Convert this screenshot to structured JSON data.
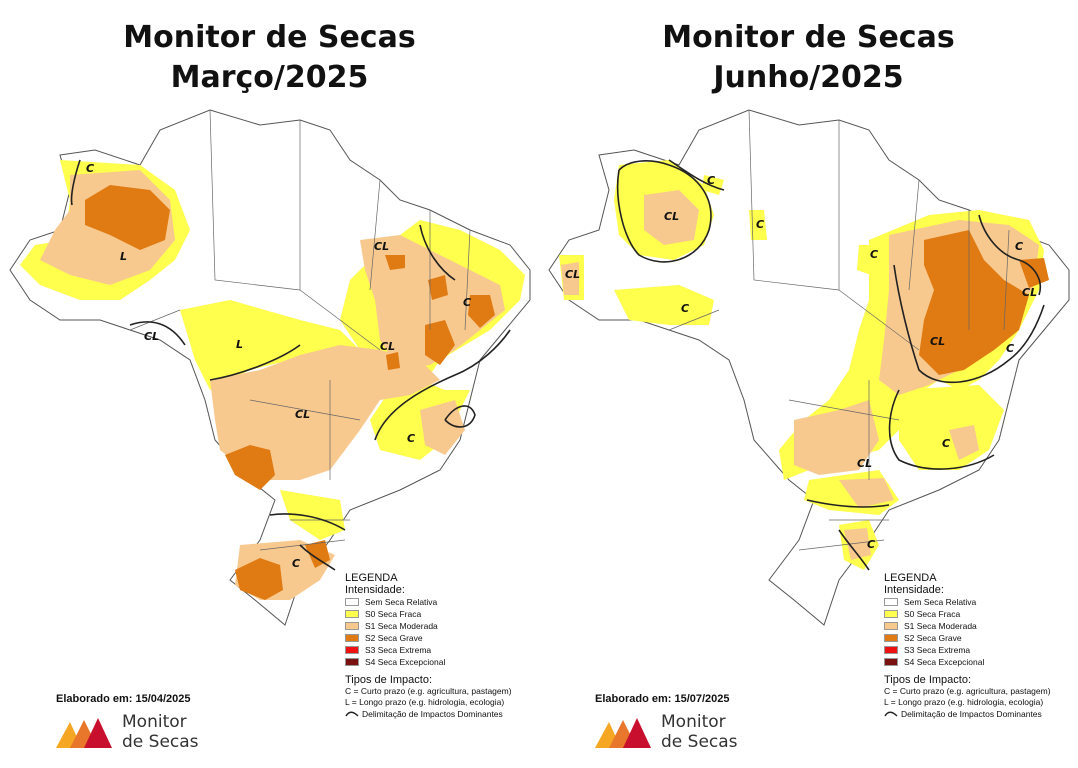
{
  "colors": {
    "s0": "#ffff4d",
    "s1": "#f8c98e",
    "s2": "#e07a12",
    "s3": "#ee1111",
    "s4": "#7a1010",
    "none": "#ffffff"
  },
  "panels": [
    {
      "title_line1": "Monitor de Secas",
      "title_line2": "Março/2025",
      "elaborado": "Elaborado em: 15/04/2025",
      "map_labels": [
        "C",
        "L",
        "CL",
        "L",
        "CL",
        "C",
        "CL",
        "C",
        "C",
        "CL"
      ]
    },
    {
      "title_line1": "Monitor de Secas",
      "title_line2": "Junho/2025",
      "elaborado": "Elaborado em: 15/07/2025",
      "map_labels": [
        "C",
        "CL",
        "C",
        "CL",
        "C",
        "C",
        "C",
        "CL",
        "CL",
        "C",
        "C",
        "CL",
        "C"
      ]
    }
  ],
  "legend": {
    "heading": "LEGENDA",
    "intensity_label": "Intensidade:",
    "items": [
      {
        "label": "Sem Seca Relativa",
        "color": "#ffffff"
      },
      {
        "label": "S0 Seca Fraca",
        "color": "#ffff4d"
      },
      {
        "label": "S1 Seca Moderada",
        "color": "#f8c98e"
      },
      {
        "label": "S2 Seca Grave",
        "color": "#e07a12"
      },
      {
        "label": "S3 Seca Extrema",
        "color": "#ee1111"
      },
      {
        "label": "S4 Seca Excepcional",
        "color": "#7a1010"
      }
    ],
    "impact_heading": "Tipos de Impacto:",
    "impact_c": "C = Curto prazo (e.g. agricultura, pastagem)",
    "impact_l": "L = Longo prazo (e.g. hidrologia, ecologia)",
    "delimitation": "Delimitação de Impactos Dominantes"
  },
  "logo": {
    "line1": "Monitor",
    "line2": "de Secas"
  }
}
